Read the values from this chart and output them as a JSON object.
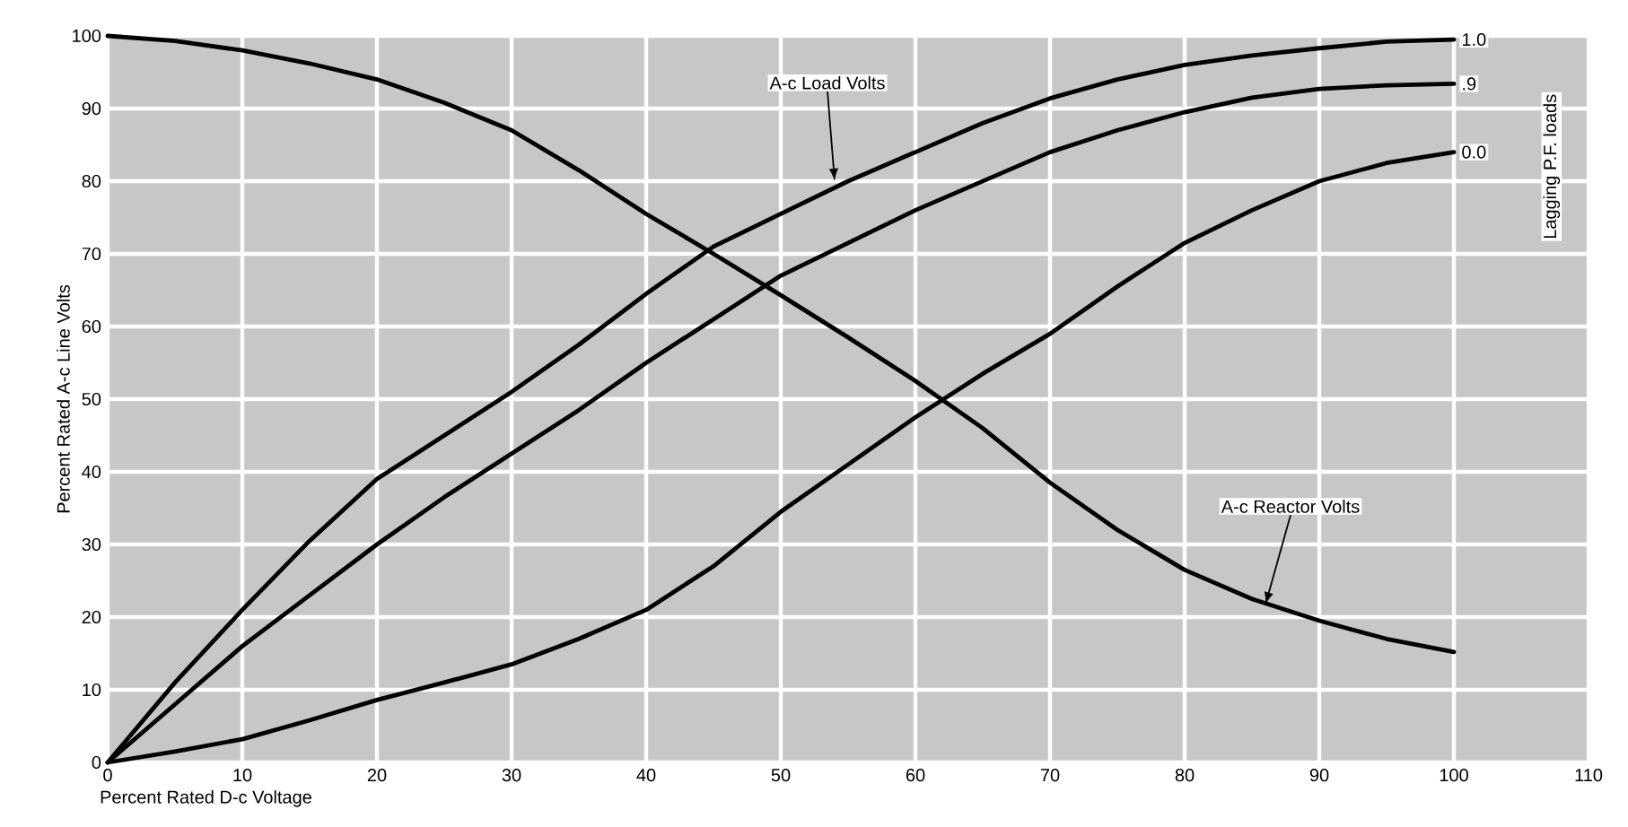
{
  "chart_data": {
    "type": "line",
    "xlabel": "Percent Rated D-c Voltage",
    "ylabel": "Percent Rated A-c Line Volts",
    "xlim": [
      0,
      110
    ],
    "ylim": [
      0,
      100
    ],
    "xticks": [
      0,
      10,
      20,
      30,
      40,
      50,
      60,
      70,
      80,
      90,
      100,
      110
    ],
    "yticks": [
      0,
      10,
      20,
      30,
      40,
      50,
      60,
      70,
      80,
      90,
      100
    ],
    "grid": true,
    "marker": "none",
    "line_style": "solid",
    "x": [
      0,
      5,
      10,
      15,
      20,
      25,
      30,
      35,
      40,
      45,
      50,
      55,
      60,
      65,
      70,
      75,
      80,
      85,
      90,
      95,
      100
    ],
    "series": [
      {
        "color": "#000000",
        "values": [
          100,
          99.3,
          98,
          96.2,
          94,
          90.8,
          87,
          81.5,
          75.5,
          70,
          64.3,
          58.5,
          52.5,
          46,
          38.5,
          32,
          26.5,
          22.5,
          19.5,
          17,
          15.2
        ]
      },
      {
        "name": "1.0",
        "color": "#000000",
        "values": [
          0,
          11,
          21,
          30.5,
          39,
          45,
          51,
          57.5,
          64.5,
          71,
          75.5,
          80,
          84,
          88,
          91.4,
          94,
          96,
          97.3,
          98.3,
          99.2,
          99.5
        ]
      },
      {
        "name": ".9",
        "color": "#000000",
        "values": [
          0,
          8,
          16,
          23,
          30,
          36.5,
          42.5,
          48.5,
          55,
          61,
          67,
          71.5,
          76,
          80,
          84,
          87,
          89.5,
          91.5,
          92.7,
          93.2,
          93.4
        ]
      },
      {
        "name": "0.0",
        "color": "#000000",
        "values": [
          0,
          1.5,
          3.2,
          5.8,
          8.6,
          11,
          13.5,
          17,
          21,
          27,
          34.5,
          41,
          47.5,
          53.5,
          59,
          65.5,
          71.5,
          76,
          80,
          82.5,
          84
        ]
      }
    ],
    "annotations": [
      {
        "text": "A-c Load Volts",
        "x": 54,
        "y": 80
      },
      {
        "text": "A-c Reactor Volts",
        "x": 86,
        "y": 21.7
      },
      "Lagging P.F. loads"
    ]
  }
}
